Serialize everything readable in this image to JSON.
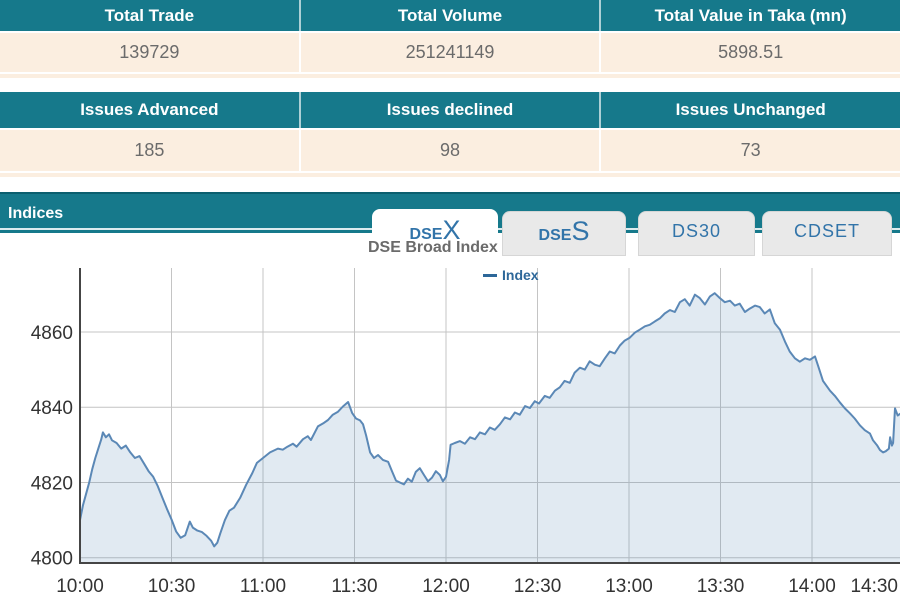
{
  "colors": {
    "teal": "#16798b",
    "tealdark": "#0b5f6f",
    "cream": "#fbeee0",
    "value_text": "#6b6b6b",
    "tab_text": "#3274a9",
    "grid": "#c4c4c4",
    "axis": "#454545",
    "tick_text": "#333333",
    "line": "#5b88b6",
    "fill": "rgba(91,136,182,0.18)",
    "legend": "#2d6799",
    "title_gray": "#6b6b6b"
  },
  "tables": [
    {
      "headers": [
        "Total Trade",
        "Total Volume",
        "Total Value in Taka (mn)"
      ],
      "values": [
        "139729",
        "251241149",
        "5898.51"
      ]
    },
    {
      "headers": [
        "Issues Advanced",
        "Issues declined",
        "Issues Unchanged"
      ],
      "values": [
        "185",
        "98",
        "73"
      ]
    }
  ],
  "indices": {
    "title": "Indices",
    "tabs": [
      {
        "label_part1": "DSE",
        "label_part2": "X",
        "active": true
      },
      {
        "label_part1": "DSE",
        "label_part2": "S",
        "active": false
      },
      {
        "label": "DS30",
        "active": false
      },
      {
        "label": "CDSET",
        "active": false
      }
    ]
  },
  "chart_data": {
    "type": "area",
    "title": "DSE Broad Index",
    "x_unit": "minutes after 10:00",
    "x_tick_labels": [
      "10:00",
      "10:30",
      "11:00",
      "11:30",
      "12:00",
      "12:30",
      "13:00",
      "13:30",
      "14:00",
      "14:30"
    ],
    "y_ticks": [
      4800,
      4820,
      4840,
      4860
    ],
    "ylim": [
      4798.6,
      4877
    ],
    "xlim_minutes": [
      0,
      270
    ],
    "grid": true,
    "legend_position": "top",
    "series": [
      {
        "name": "Index",
        "points": [
          [
            0,
            4810
          ],
          [
            1,
            4814
          ],
          [
            2,
            4817
          ],
          [
            3,
            4820
          ],
          [
            4,
            4823.5
          ],
          [
            5,
            4826.5
          ],
          [
            6,
            4829
          ],
          [
            7,
            4831.5
          ],
          [
            7.5,
            4833.3
          ],
          [
            8.5,
            4832
          ],
          [
            9.5,
            4832.8
          ],
          [
            10.5,
            4831.2
          ],
          [
            12,
            4830.5
          ],
          [
            13.5,
            4829
          ],
          [
            15,
            4829.8
          ],
          [
            16.5,
            4828
          ],
          [
            18,
            4826.5
          ],
          [
            19.5,
            4827
          ],
          [
            21,
            4825
          ],
          [
            22.5,
            4823
          ],
          [
            24,
            4821.5
          ],
          [
            25.5,
            4819
          ],
          [
            27,
            4816
          ],
          [
            28.5,
            4813
          ],
          [
            30,
            4810.2
          ],
          [
            31.5,
            4807
          ],
          [
            33,
            4805.3
          ],
          [
            34.5,
            4806
          ],
          [
            36,
            4809.6
          ],
          [
            37,
            4808
          ],
          [
            38.5,
            4807.2
          ],
          [
            40,
            4806.8
          ],
          [
            41.5,
            4805.8
          ],
          [
            43,
            4804.5
          ],
          [
            44,
            4803
          ],
          [
            45,
            4804
          ],
          [
            46,
            4806.5
          ],
          [
            47.5,
            4810
          ],
          [
            49,
            4812.5
          ],
          [
            50.5,
            4813.3
          ],
          [
            52.5,
            4815.9
          ],
          [
            54.5,
            4819.4
          ],
          [
            56.5,
            4822.5
          ],
          [
            58,
            4825.2
          ],
          [
            60,
            4826.5
          ],
          [
            62.3,
            4828
          ],
          [
            64.9,
            4829
          ],
          [
            66.5,
            4828.7
          ],
          [
            68,
            4829.5
          ],
          [
            69.8,
            4830.3
          ],
          [
            71,
            4829.5
          ],
          [
            73.1,
            4831.5
          ],
          [
            74.7,
            4832.3
          ],
          [
            75.7,
            4831.3
          ],
          [
            78,
            4834.9
          ],
          [
            79.7,
            4835.7
          ],
          [
            81.3,
            4836.6
          ],
          [
            82.9,
            4838
          ],
          [
            84.6,
            4838.8
          ],
          [
            86.2,
            4840.2
          ],
          [
            87.9,
            4841.4
          ],
          [
            89.2,
            4838.5
          ],
          [
            90.5,
            4837
          ],
          [
            91.8,
            4836.5
          ],
          [
            92.8,
            4835.5
          ],
          [
            93.8,
            4832.5
          ],
          [
            95.1,
            4828
          ],
          [
            96.4,
            4826.5
          ],
          [
            97.7,
            4827.3
          ],
          [
            99.3,
            4826
          ],
          [
            101,
            4825.5
          ],
          [
            102.3,
            4823
          ],
          [
            103.6,
            4820.5
          ],
          [
            104.9,
            4820
          ],
          [
            106.2,
            4819.5
          ],
          [
            107.5,
            4821
          ],
          [
            108.8,
            4820.2
          ],
          [
            110.1,
            4822.8
          ],
          [
            111.4,
            4823.8
          ],
          [
            112.8,
            4822
          ],
          [
            114.1,
            4820.3
          ],
          [
            115.4,
            4821.3
          ],
          [
            116.7,
            4823
          ],
          [
            118,
            4822
          ],
          [
            119,
            4820.3
          ],
          [
            120,
            4821.5
          ],
          [
            121,
            4826
          ],
          [
            121.5,
            4830
          ],
          [
            122.9,
            4830.5
          ],
          [
            124.6,
            4831
          ],
          [
            126.2,
            4830.3
          ],
          [
            127.9,
            4832
          ],
          [
            129.5,
            4831.5
          ],
          [
            131.1,
            4833.3
          ],
          [
            132.8,
            4832.8
          ],
          [
            134.4,
            4834.6
          ],
          [
            136,
            4834
          ],
          [
            137.7,
            4835.5
          ],
          [
            139.3,
            4837.3
          ],
          [
            141,
            4836.8
          ],
          [
            142.6,
            4838.6
          ],
          [
            144.2,
            4838
          ],
          [
            145.9,
            4840.3
          ],
          [
            147.5,
            4839.8
          ],
          [
            149.1,
            4841.6
          ],
          [
            150.5,
            4841
          ],
          [
            152.4,
            4843
          ],
          [
            154,
            4842.5
          ],
          [
            155.7,
            4844.4
          ],
          [
            157.3,
            4845.3
          ],
          [
            158.9,
            4847
          ],
          [
            160.6,
            4846.5
          ],
          [
            162.2,
            4849.2
          ],
          [
            163.9,
            4850.5
          ],
          [
            165.5,
            4850
          ],
          [
            167.1,
            4852.2
          ],
          [
            168.8,
            4851.3
          ],
          [
            170.4,
            4850.9
          ],
          [
            172.1,
            4853
          ],
          [
            173.7,
            4854.8
          ],
          [
            175.3,
            4854.3
          ],
          [
            177,
            4856.4
          ],
          [
            178.6,
            4857.7
          ],
          [
            180.3,
            4858.5
          ],
          [
            181.9,
            4859.8
          ],
          [
            183.5,
            4860.6
          ],
          [
            185.2,
            4861.5
          ],
          [
            186.8,
            4861.9
          ],
          [
            188.5,
            4862.8
          ],
          [
            190.1,
            4863.6
          ],
          [
            191.7,
            4864.9
          ],
          [
            193.4,
            4865.8
          ],
          [
            195,
            4865.3
          ],
          [
            196.7,
            4867.9
          ],
          [
            198.3,
            4868.7
          ],
          [
            199.9,
            4867
          ],
          [
            201.6,
            4869.9
          ],
          [
            203.2,
            4869
          ],
          [
            204.9,
            4867.3
          ],
          [
            206.5,
            4869.4
          ],
          [
            208.1,
            4870.3
          ],
          [
            209.8,
            4869
          ],
          [
            211.4,
            4867.9
          ],
          [
            213.1,
            4868.3
          ],
          [
            214.7,
            4867
          ],
          [
            216.3,
            4867.5
          ],
          [
            218,
            4865.3
          ],
          [
            219.6,
            4866.2
          ],
          [
            221.3,
            4867
          ],
          [
            222.9,
            4866.6
          ],
          [
            224.5,
            4864.9
          ],
          [
            226.2,
            4866
          ],
          [
            227.8,
            4862.3
          ],
          [
            229.5,
            4860.6
          ],
          [
            231.1,
            4857.5
          ],
          [
            232.7,
            4854.8
          ],
          [
            234.4,
            4853
          ],
          [
            236,
            4852.1
          ],
          [
            237.7,
            4853
          ],
          [
            239.3,
            4852.6
          ],
          [
            241,
            4853.5
          ],
          [
            242,
            4851
          ],
          [
            243.6,
            4847
          ],
          [
            245.9,
            4844.4
          ],
          [
            247.5,
            4843
          ],
          [
            249.1,
            4841.3
          ],
          [
            250.8,
            4839.7
          ],
          [
            252.4,
            4838.4
          ],
          [
            254,
            4837
          ],
          [
            255.7,
            4835.2
          ],
          [
            257.3,
            4833.9
          ],
          [
            259,
            4833
          ],
          [
            260,
            4831.2
          ],
          [
            261.3,
            4829.9
          ],
          [
            262.3,
            4828.6
          ],
          [
            263.3,
            4828
          ],
          [
            264.2,
            4828.3
          ],
          [
            265.2,
            4829
          ],
          [
            265.6,
            4832
          ],
          [
            266.2,
            4829.8
          ],
          [
            266.6,
            4830.5
          ],
          [
            267.2,
            4839.7
          ],
          [
            268.1,
            4837.8
          ],
          [
            269,
            4838.3
          ]
        ]
      }
    ]
  }
}
